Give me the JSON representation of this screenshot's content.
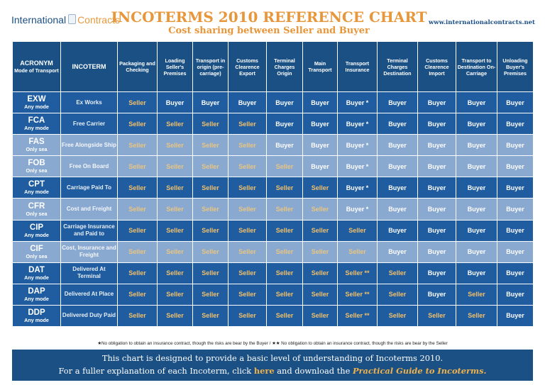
{
  "header": {
    "logo_part1": "International",
    "logo_part2": "Contracts",
    "title": "INCOTERMS 2010 REFERENCE CHART",
    "subtitle": "Cost sharing between Seller and Buyer",
    "url": "www.internationalcontracts.net"
  },
  "table": {
    "acronym_header": "ACRONYM",
    "mode_header": "Mode of Transport",
    "incoterm_header": "INCOTERM",
    "columns": [
      "Packaging and Checking",
      "Loading Seller's Premises",
      "Transport in origin (pre-carriage)",
      "Customs Clearence Export",
      "Terminal Charges Origin",
      "Main Transport",
      "Transport Insurance",
      "Terminal Charges Destination",
      "Customs Clearence Import",
      "Transport to Destination On-Carriage",
      "Unloading Buyer's Premises"
    ],
    "rows": [
      {
        "code": "EXW",
        "mode": "Any mode",
        "term": "Ex Works",
        "shade": "dark",
        "values": [
          "Seller",
          "Buyer",
          "Buyer",
          "Buyer",
          "Buyer",
          "Buyer",
          "Buyer *",
          "Buyer",
          "Buyer",
          "Buyer",
          "Buyer"
        ]
      },
      {
        "code": "FCA",
        "mode": "Any mode",
        "term": "Free Carrier",
        "shade": "dark",
        "values": [
          "Seller",
          "Seller",
          "Seller",
          "Seller",
          "Buyer",
          "Buyer",
          "Buyer *",
          "Buyer",
          "Buyer",
          "Buyer",
          "Buyer"
        ]
      },
      {
        "code": "FAS",
        "mode": "Only sea",
        "term": "Free Alongside Ship",
        "shade": "light",
        "values": [
          "Seller",
          "Seller",
          "Seller",
          "Seller",
          "Buyer",
          "Buyer",
          "Buyer *",
          "Buyer",
          "Buyer",
          "Buyer",
          "Buyer"
        ]
      },
      {
        "code": "FOB",
        "mode": "Only sea",
        "term": "Free On Board",
        "shade": "light",
        "values": [
          "Seller",
          "Seller",
          "Seller",
          "Seller",
          "Seller",
          "Buyer",
          "Buyer *",
          "Buyer",
          "Buyer",
          "Buyer",
          "Buyer"
        ]
      },
      {
        "code": "CPT",
        "mode": "Any mode",
        "term": "Carriage Paid To",
        "shade": "dark",
        "values": [
          "Seller",
          "Seller",
          "Seller",
          "Seller",
          "Seller",
          "Seller",
          "Buyer *",
          "Buyer",
          "Buyer",
          "Buyer",
          "Buyer"
        ]
      },
      {
        "code": "CFR",
        "mode": "Only sea",
        "term": "Cost and Freight",
        "shade": "light",
        "values": [
          "Seller",
          "Seller",
          "Seller",
          "Seller",
          "Seller",
          "Seller",
          "Buyer *",
          "Buyer",
          "Buyer",
          "Buyer",
          "Buyer"
        ]
      },
      {
        "code": "CIP",
        "mode": "Any mode",
        "term": "Carriage Insurance and Paid to",
        "shade": "dark",
        "values": [
          "Seller",
          "Seller",
          "Seller",
          "Seller",
          "Seller",
          "Seller",
          "Seller",
          "Buyer",
          "Buyer",
          "Buyer",
          "Buyer"
        ]
      },
      {
        "code": "CIF",
        "mode": "Only sea",
        "term": "Cost, Insurance and Freight",
        "shade": "light",
        "values": [
          "Seller",
          "Seller",
          "Seller",
          "Seller",
          "Seller",
          "Seller",
          "Seller",
          "Buyer",
          "Buyer",
          "Buyer",
          "Buyer"
        ]
      },
      {
        "code": "DAT",
        "mode": "Any mode",
        "term": "Delivered At Terminal",
        "shade": "dark",
        "values": [
          "Seller",
          "Seller",
          "Seller",
          "Seller",
          "Seller",
          "Seller",
          "Seller **",
          "Seller",
          "Buyer",
          "Buyer",
          "Buyer"
        ]
      },
      {
        "code": "DAP",
        "mode": "Any mode",
        "term": "Delivered At Place",
        "shade": "dark",
        "values": [
          "Seller",
          "Seller",
          "Seller",
          "Seller",
          "Seller",
          "Seller",
          "Seller **",
          "Seller",
          "Buyer",
          "Seller",
          "Buyer"
        ]
      },
      {
        "code": "DDP",
        "mode": "Any mode",
        "term": "Delivered Duty Paid",
        "shade": "dark",
        "values": [
          "Seller",
          "Seller",
          "Seller",
          "Seller",
          "Seller",
          "Seller",
          "Seller **",
          "Seller",
          "Seller",
          "Seller",
          "Buyer"
        ]
      }
    ]
  },
  "footnote": "★No obligation to obtain an insurance contract, though the risks are bear by the Buyer / ★★ No obligation to obtain an insurance contract, though the risks are bear by the Seller",
  "bottom": {
    "line1": "This chart is designed to provide a basic level of understanding of Incoterms 2010.",
    "line2_pre": "For a fuller explanation of each Incoterm, click",
    "line2_link": "here",
    "line2_mid": "and download the",
    "line2_guide": "Practical Guide to Incoterms."
  }
}
